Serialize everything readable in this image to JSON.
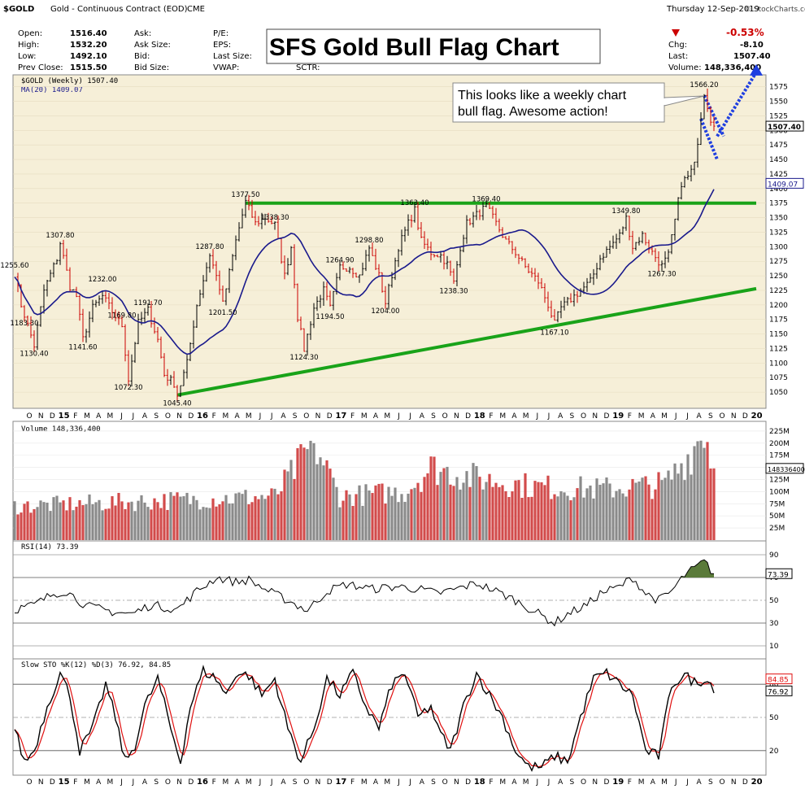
{
  "header": {
    "symbol": "$GOLD",
    "description": "Gold - Continuous Contract (EOD)",
    "exchange": "CME",
    "watermark": "© StockCharts.com",
    "date": "Thursday  12-Sep-2019",
    "fields": [
      {
        "label": "Open:",
        "value": "1516.40"
      },
      {
        "label": "High:",
        "value": "1532.20"
      },
      {
        "label": "Low:",
        "value": "1492.10"
      },
      {
        "label": "Prev Close:",
        "value": "1515.50"
      }
    ],
    "mid_labels": [
      "Ask:",
      "Ask Size:",
      "Bid:",
      "Bid Size:"
    ],
    "mid2_labels": [
      "P/E:",
      "EPS:",
      "Last Size:",
      "VWAP:"
    ],
    "sctr_label": "SCTR:",
    "change_pct": "-0.53%",
    "chg_label": "Chg:",
    "chg_value": "-8.10",
    "last_label": "Last:",
    "last_value": "1507.40",
    "volume_label": "Volume:",
    "volume_value": "148,336,400"
  },
  "title": "SFS Gold Bull Flag Chart",
  "callout": [
    "This looks like a weekly chart",
    "bull flag.  Awesome action!"
  ],
  "colors": {
    "up": "#000000",
    "down": "#cc0000",
    "ma": "#1a1a8c",
    "trend": "#19a319",
    "flag": "#1f3fe0",
    "price_bg": "#f6efd8"
  },
  "x_axis_labels": [
    "O",
    "N",
    "D",
    "15",
    "F",
    "M",
    "A",
    "M",
    "J",
    "J",
    "A",
    "S",
    "O",
    "N",
    "D",
    "16",
    "F",
    "M",
    "A",
    "M",
    "J",
    "J",
    "A",
    "S",
    "O",
    "N",
    "D",
    "17",
    "F",
    "M",
    "A",
    "M",
    "J",
    "J",
    "A",
    "S",
    "O",
    "N",
    "D",
    "18",
    "F",
    "M",
    "A",
    "M",
    "J",
    "J",
    "A",
    "S",
    "O",
    "N",
    "D",
    "19",
    "F",
    "M",
    "A",
    "M",
    "J",
    "J",
    "A",
    "S",
    "O",
    "N",
    "D",
    "20"
  ],
  "chart_data": [
    {
      "type": "line",
      "title": "$GOLD (Weekly) 1507.40",
      "ma_label": "MA(20) 1409.07",
      "yticks": [
        1050,
        1075,
        1100,
        1125,
        1150,
        1175,
        1200,
        1225,
        1250,
        1275,
        1300,
        1325,
        1350,
        1375,
        1400,
        1425,
        1450,
        1475,
        1500,
        1525,
        1550,
        1575
      ],
      "ylim": [
        1025,
        1590
      ],
      "last_price": "1507.40",
      "ma_last": "1409.07",
      "anchors": [
        [
          0,
          1255
        ],
        [
          2,
          1200
        ],
        [
          3,
          1183
        ],
        [
          6,
          1130
        ],
        [
          9,
          1225
        ],
        [
          13,
          1280
        ],
        [
          14,
          1307
        ],
        [
          17,
          1232
        ],
        [
          19,
          1215
        ],
        [
          21,
          1141
        ],
        [
          24,
          1195
        ],
        [
          27,
          1215
        ],
        [
          31,
          1180
        ],
        [
          33,
          1165
        ],
        [
          35,
          1072
        ],
        [
          38,
          1169
        ],
        [
          41,
          1191
        ],
        [
          44,
          1140
        ],
        [
          46,
          1080
        ],
        [
          49,
          1065
        ],
        [
          50,
          1045
        ],
        [
          53,
          1100
        ],
        [
          56,
          1200
        ],
        [
          60,
          1287
        ],
        [
          63,
          1230
        ],
        [
          64,
          1201
        ],
        [
          68,
          1310
        ],
        [
          71,
          1377
        ],
        [
          74,
          1340
        ],
        [
          77,
          1350
        ],
        [
          80,
          1338
        ],
        [
          83,
          1250
        ],
        [
          85,
          1300
        ],
        [
          87,
          1180
        ],
        [
          89,
          1124
        ],
        [
          92,
          1195
        ],
        [
          95,
          1225
        ],
        [
          97,
          1194
        ],
        [
          100,
          1265
        ],
        [
          103,
          1265
        ],
        [
          106,
          1250
        ],
        [
          109,
          1298
        ],
        [
          112,
          1250
        ],
        [
          114,
          1204
        ],
        [
          118,
          1300
        ],
        [
          121,
          1340
        ],
        [
          123,
          1363
        ],
        [
          125,
          1310
        ],
        [
          128,
          1290
        ],
        [
          131,
          1285
        ],
        [
          133,
          1270
        ],
        [
          135,
          1238
        ],
        [
          137,
          1300
        ],
        [
          139,
          1340
        ],
        [
          142,
          1355
        ],
        [
          145,
          1369
        ],
        [
          148,
          1340
        ],
        [
          151,
          1310
        ],
        [
          154,
          1290
        ],
        [
          157,
          1265
        ],
        [
          161,
          1240
        ],
        [
          164,
          1200
        ],
        [
          166,
          1167
        ],
        [
          168,
          1195
        ],
        [
          171,
          1210
        ],
        [
          174,
          1225
        ],
        [
          177,
          1240
        ],
        [
          180,
          1280
        ],
        [
          183,
          1300
        ],
        [
          186,
          1320
        ],
        [
          188,
          1349
        ],
        [
          190,
          1300
        ],
        [
          193,
          1320
        ],
        [
          196,
          1290
        ],
        [
          199,
          1267
        ],
        [
          201,
          1285
        ],
        [
          203,
          1345
        ],
        [
          205,
          1410
        ],
        [
          207,
          1420
        ],
        [
          209,
          1440
        ],
        [
          211,
          1525
        ],
        [
          212,
          1566
        ],
        [
          214,
          1520
        ],
        [
          215,
          1507
        ]
      ],
      "annotations": [
        {
          "week": 0,
          "value": 1255.6,
          "text": "1255.60",
          "pos": "above"
        },
        {
          "week": 3,
          "value": 1183.3,
          "text": "1183.30",
          "pos": "below"
        },
        {
          "week": 6,
          "value": 1130.4,
          "text": "1130.40",
          "pos": "below"
        },
        {
          "week": 14,
          "value": 1307.8,
          "text": "1307.80",
          "pos": "above"
        },
        {
          "week": 21,
          "value": 1141.6,
          "text": "1141.60",
          "pos": "below"
        },
        {
          "week": 27,
          "value": 1232.0,
          "text": "1232.00",
          "pos": "above"
        },
        {
          "week": 33,
          "value": 1169.8,
          "text": "1169.80",
          "pos": "above"
        },
        {
          "week": 35,
          "value": 1072.3,
          "text": "1072.30",
          "pos": "below"
        },
        {
          "week": 41,
          "value": 1191.7,
          "text": "1191.70",
          "pos": "above"
        },
        {
          "week": 50,
          "value": 1045.4,
          "text": "1045.40",
          "pos": "below"
        },
        {
          "week": 60,
          "value": 1287.8,
          "text": "1287.80",
          "pos": "above"
        },
        {
          "week": 64,
          "value": 1201.5,
          "text": "1201.50",
          "pos": "below"
        },
        {
          "week": 71,
          "value": 1377.5,
          "text": "1377.50",
          "pos": "above"
        },
        {
          "week": 80,
          "value": 1338.3,
          "text": "1338.30",
          "pos": "above"
        },
        {
          "week": 89,
          "value": 1124.3,
          "text": "1124.30",
          "pos": "below"
        },
        {
          "week": 97,
          "value": 1194.5,
          "text": "1194.50",
          "pos": "below"
        },
        {
          "week": 100,
          "value": 1264.9,
          "text": "1264.90",
          "pos": "above"
        },
        {
          "week": 109,
          "value": 1298.8,
          "text": "1298.80",
          "pos": "above"
        },
        {
          "week": 114,
          "value": 1204.0,
          "text": "1204.00",
          "pos": "below"
        },
        {
          "week": 123,
          "value": 1363.4,
          "text": "1363.40",
          "pos": "above"
        },
        {
          "week": 135,
          "value": 1238.3,
          "text": "1238.30",
          "pos": "below"
        },
        {
          "week": 145,
          "value": 1369.4,
          "text": "1369.40",
          "pos": "above"
        },
        {
          "week": 166,
          "value": 1167.1,
          "text": "1167.10",
          "pos": "below"
        },
        {
          "week": 188,
          "value": 1349.8,
          "text": "1349.80",
          "pos": "above"
        },
        {
          "week": 199,
          "value": 1267.3,
          "text": "1267.30",
          "pos": "below"
        },
        {
          "week": 212,
          "value": 1566.2,
          "text": "1566.20",
          "pos": "above"
        }
      ],
      "lines": [
        {
          "name": "resistance",
          "from": [
            71,
            1375
          ],
          "to": [
            228,
            1375
          ]
        },
        {
          "name": "support",
          "from": [
            50,
            1045
          ],
          "to": [
            228,
            1228
          ]
        },
        {
          "name": "flag-upper",
          "from": [
            212,
            1560
          ],
          "to": [
            218,
            1490
          ]
        },
        {
          "name": "flag-lower",
          "from": [
            211,
            1520
          ],
          "to": [
            216,
            1450
          ]
        },
        {
          "name": "flag-projection",
          "from": [
            216,
            1490
          ],
          "to": [
            228,
            1600
          ]
        }
      ]
    },
    {
      "type": "bar",
      "title": "Volume 148,336,400",
      "yticks": [
        "25M",
        "50M",
        "75M",
        "100M",
        "125M",
        "150M",
        "175M",
        "200M",
        "225M"
      ],
      "ylim": [
        0,
        235
      ],
      "last_value": "148336400",
      "anchors": [
        [
          0,
          70
        ],
        [
          20,
          75
        ],
        [
          40,
          80
        ],
        [
          60,
          85
        ],
        [
          80,
          90
        ],
        [
          92,
          200
        ],
        [
          100,
          90
        ],
        [
          120,
          100
        ],
        [
          128,
          150
        ],
        [
          140,
          130
        ],
        [
          160,
          110
        ],
        [
          180,
          105
        ],
        [
          200,
          115
        ],
        [
          208,
          180
        ],
        [
          212,
          230
        ],
        [
          215,
          148
        ]
      ]
    },
    {
      "type": "line",
      "title": "RSI(14) 73.39",
      "yticks": [
        10,
        30,
        50,
        70,
        90
      ],
      "ylim": [
        0,
        100
      ],
      "last_value": "73.39",
      "anchors": [
        [
          0,
          42
        ],
        [
          6,
          46
        ],
        [
          12,
          56
        ],
        [
          16,
          58
        ],
        [
          22,
          45
        ],
        [
          30,
          40
        ],
        [
          36,
          38
        ],
        [
          42,
          46
        ],
        [
          50,
          42
        ],
        [
          56,
          58
        ],
        [
          62,
          70
        ],
        [
          68,
          66
        ],
        [
          72,
          68
        ],
        [
          78,
          58
        ],
        [
          84,
          50
        ],
        [
          90,
          41
        ],
        [
          96,
          58
        ],
        [
          102,
          64
        ],
        [
          110,
          60
        ],
        [
          118,
          62
        ],
        [
          124,
          60
        ],
        [
          130,
          56
        ],
        [
          136,
          60
        ],
        [
          142,
          65
        ],
        [
          148,
          58
        ],
        [
          154,
          50
        ],
        [
          160,
          40
        ],
        [
          166,
          30
        ],
        [
          170,
          38
        ],
        [
          176,
          46
        ],
        [
          180,
          56
        ],
        [
          186,
          62
        ],
        [
          190,
          70
        ],
        [
          194,
          56
        ],
        [
          198,
          50
        ],
        [
          202,
          58
        ],
        [
          206,
          72
        ],
        [
          210,
          80
        ],
        [
          212,
          84
        ],
        [
          215,
          73
        ]
      ]
    },
    {
      "type": "line",
      "title": "Slow STO %K(12) %D(3) 76.92, 84.85",
      "yticks": [
        20,
        50,
        80
      ],
      "ylim": [
        0,
        100
      ],
      "k_last": "76.92",
      "d_last": "84.85",
      "anchors": [
        [
          0,
          40
        ],
        [
          3,
          10
        ],
        [
          6,
          20
        ],
        [
          10,
          60
        ],
        [
          14,
          90
        ],
        [
          17,
          70
        ],
        [
          20,
          20
        ],
        [
          24,
          40
        ],
        [
          28,
          80
        ],
        [
          31,
          50
        ],
        [
          34,
          10
        ],
        [
          37,
          25
        ],
        [
          40,
          60
        ],
        [
          44,
          85
        ],
        [
          48,
          40
        ],
        [
          51,
          10
        ],
        [
          54,
          60
        ],
        [
          58,
          92
        ],
        [
          62,
          85
        ],
        [
          65,
          70
        ],
        [
          68,
          90
        ],
        [
          72,
          88
        ],
        [
          76,
          70
        ],
        [
          80,
          85
        ],
        [
          84,
          40
        ],
        [
          88,
          10
        ],
        [
          92,
          40
        ],
        [
          96,
          85
        ],
        [
          100,
          70
        ],
        [
          104,
          90
        ],
        [
          108,
          60
        ],
        [
          112,
          40
        ],
        [
          116,
          80
        ],
        [
          120,
          90
        ],
        [
          124,
          50
        ],
        [
          128,
          60
        ],
        [
          130,
          40
        ],
        [
          134,
          20
        ],
        [
          138,
          60
        ],
        [
          142,
          90
        ],
        [
          146,
          70
        ],
        [
          150,
          50
        ],
        [
          154,
          20
        ],
        [
          158,
          5
        ],
        [
          162,
          5
        ],
        [
          166,
          15
        ],
        [
          170,
          10
        ],
        [
          174,
          50
        ],
        [
          178,
          85
        ],
        [
          182,
          90
        ],
        [
          186,
          80
        ],
        [
          190,
          70
        ],
        [
          194,
          20
        ],
        [
          198,
          15
        ],
        [
          202,
          80
        ],
        [
          206,
          88
        ],
        [
          210,
          80
        ],
        [
          212,
          86
        ],
        [
          215,
          77
        ]
      ]
    }
  ]
}
